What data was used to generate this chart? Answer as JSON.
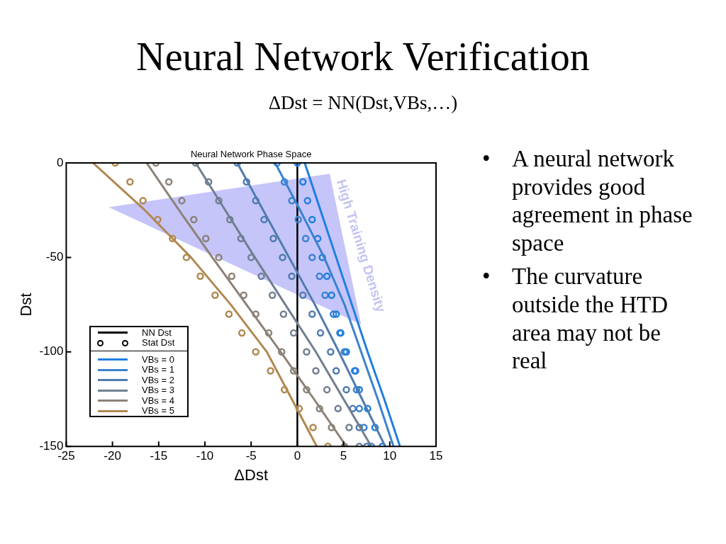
{
  "chart_data": {
    "type": "line",
    "title": "Neural Network Verification",
    "subtitle": "ΔDst = NN(Dst,VBs,…)",
    "xlabel": "ΔDst",
    "ylabel": "Dst",
    "xlim": [
      -25,
      15
    ],
    "xticks": [
      -25,
      -20,
      -15,
      -10,
      -5,
      0,
      5,
      10,
      15
    ],
    "ylim": [
      -150,
      0
    ],
    "yticks": [
      0,
      -50,
      -100,
      -150
    ],
    "grid": false,
    "legend": "bottom left",
    "ref_lines": [
      {
        "axis": "x",
        "value": 0,
        "color": "#000000"
      }
    ],
    "annotations": [
      "Neural Network Phase Space",
      "High Training Density",
      "• A neural network provides good agreement in phase space",
      "• The curvature outside the HTD area may not be real"
    ],
    "series": [
      {
        "name": "NN Dst",
        "type": "line",
        "color": "#000000",
        "marker": "none"
      },
      {
        "name": "Stat Dst",
        "type": "scatter",
        "color": "#000000",
        "marker": "circle"
      },
      {
        "name": "VBs = 0",
        "type": "line",
        "color": "#1f7fe0",
        "marker": "none",
        "x": [
          0.8,
          2.5,
          4.2,
          5.9,
          7.6,
          9.4,
          11.1
        ],
        "values": [
          0,
          -25,
          -50,
          -75,
          -100,
          -125,
          -150
        ]
      },
      {
        "name": "VBs = 1",
        "type": "line",
        "color": "#3a82d0",
        "marker": "none",
        "x": [
          -2.4,
          0.3,
          2.9,
          5.1,
          6.9,
          8.7,
          10.4
        ],
        "values": [
          0,
          -25,
          -50,
          -75,
          -100,
          -125,
          -150
        ]
      },
      {
        "name": "VBs = 2",
        "type": "line",
        "color": "#4f7bb0",
        "marker": "none",
        "x": [
          -6.5,
          -3.7,
          -0.9,
          1.9,
          4.5,
          7.0,
          9.5
        ],
        "values": [
          0,
          -25,
          -50,
          -75,
          -100,
          -125,
          -150
        ]
      },
      {
        "name": "VBs = 3",
        "type": "line",
        "color": "#707f90",
        "marker": "none",
        "x": [
          -11.0,
          -7.8,
          -4.6,
          -1.3,
          2.0,
          5.0,
          8.0
        ],
        "values": [
          0,
          -25,
          -50,
          -75,
          -100,
          -125,
          -150
        ]
      },
      {
        "name": "VBs = 4",
        "type": "line",
        "color": "#8c8278",
        "marker": "none",
        "x": [
          -16.3,
          -12.8,
          -9.2,
          -5.5,
          -1.8,
          1.8,
          5.3
        ],
        "values": [
          0,
          -25,
          -50,
          -75,
          -100,
          -125,
          -150
        ]
      },
      {
        "name": "VBs = 5",
        "type": "line",
        "color": "#b08850",
        "marker": "none",
        "x": [
          -22.1,
          -16.5,
          -11.5,
          -7.2,
          -3.3,
          -0.6,
          2.1
        ],
        "values": [
          0,
          -25,
          -50,
          -75,
          -100,
          -125,
          -150
        ]
      },
      {
        "type": "scatter",
        "color": "#1f7fe0",
        "marker": "circle",
        "x": [
          0,
          0.6,
          1.1,
          1.6,
          2.2,
          2.7,
          3.2,
          3.7,
          4.2,
          4.7,
          5.3,
          6.2,
          6.7,
          7.6,
          8.4,
          9.2
        ],
        "values": [
          0,
          -10,
          -20,
          -30,
          -40,
          -50,
          -60,
          -70,
          -80,
          -90,
          -100,
          -110,
          -120,
          -130,
          -140,
          -150
        ]
      },
      {
        "type": "scatter",
        "color": "#3a82d0",
        "marker": "circle",
        "x": [
          -2.2,
          -1.4,
          -0.6,
          0.1,
          0.9,
          1.6,
          2.4,
          3.0,
          3.9,
          4.6,
          5.1,
          6.3,
          6.4,
          6.7,
          7.2,
          8.0
        ],
        "values": [
          0,
          -10,
          -20,
          -30,
          -40,
          -50,
          -60,
          -70,
          -80,
          -90,
          -100,
          -110,
          -120,
          -130,
          -140,
          -150
        ]
      },
      {
        "type": "scatter",
        "color": "#4f7bb0",
        "marker": "circle",
        "x": [
          -6.5,
          -5.5,
          -4.5,
          -3.6,
          -2.6,
          -1.6,
          -0.6,
          0.6,
          1.6,
          2.5,
          3.6,
          4.2,
          5.3,
          6.0,
          6.7,
          7.5
        ],
        "values": [
          0,
          -10,
          -20,
          -30,
          -40,
          -50,
          -60,
          -70,
          -80,
          -90,
          -100,
          -110,
          -120,
          -130,
          -140,
          -150
        ]
      },
      {
        "type": "scatter",
        "color": "#707f90",
        "marker": "circle",
        "x": [
          -11.0,
          -9.6,
          -8.5,
          -7.3,
          -6.1,
          -5.0,
          -3.9,
          -2.7,
          -1.5,
          -0.4,
          1.0,
          2.0,
          3.2,
          4.4,
          5.6,
          6.7
        ],
        "values": [
          0,
          -10,
          -20,
          -30,
          -40,
          -50,
          -60,
          -70,
          -80,
          -90,
          -100,
          -110,
          -120,
          -130,
          -140,
          -150
        ]
      },
      {
        "type": "scatter",
        "color": "#8c8278",
        "marker": "circle",
        "x": [
          -15.3,
          -13.9,
          -12.5,
          -11.2,
          -9.9,
          -8.5,
          -7.1,
          -5.8,
          -4.5,
          -3.1,
          -1.7,
          -0.4,
          1.0,
          2.4,
          3.7,
          5.1
        ],
        "values": [
          0,
          -10,
          -20,
          -30,
          -40,
          -50,
          -60,
          -70,
          -80,
          -90,
          -100,
          -110,
          -120,
          -130,
          -140,
          -150
        ]
      },
      {
        "type": "scatter",
        "color": "#b08850",
        "marker": "circle",
        "x": [
          -19.7,
          -18.1,
          -16.7,
          -15.1,
          -13.5,
          -12.0,
          -10.5,
          -8.9,
          -7.4,
          -6.0,
          -4.5,
          -2.9,
          -1.4,
          0.2,
          1.7,
          3.3
        ],
        "values": [
          0,
          -10,
          -20,
          -30,
          -40,
          -50,
          -60,
          -70,
          -80,
          -90,
          -100,
          -110,
          -120,
          -130,
          -140,
          -150
        ]
      }
    ]
  }
}
